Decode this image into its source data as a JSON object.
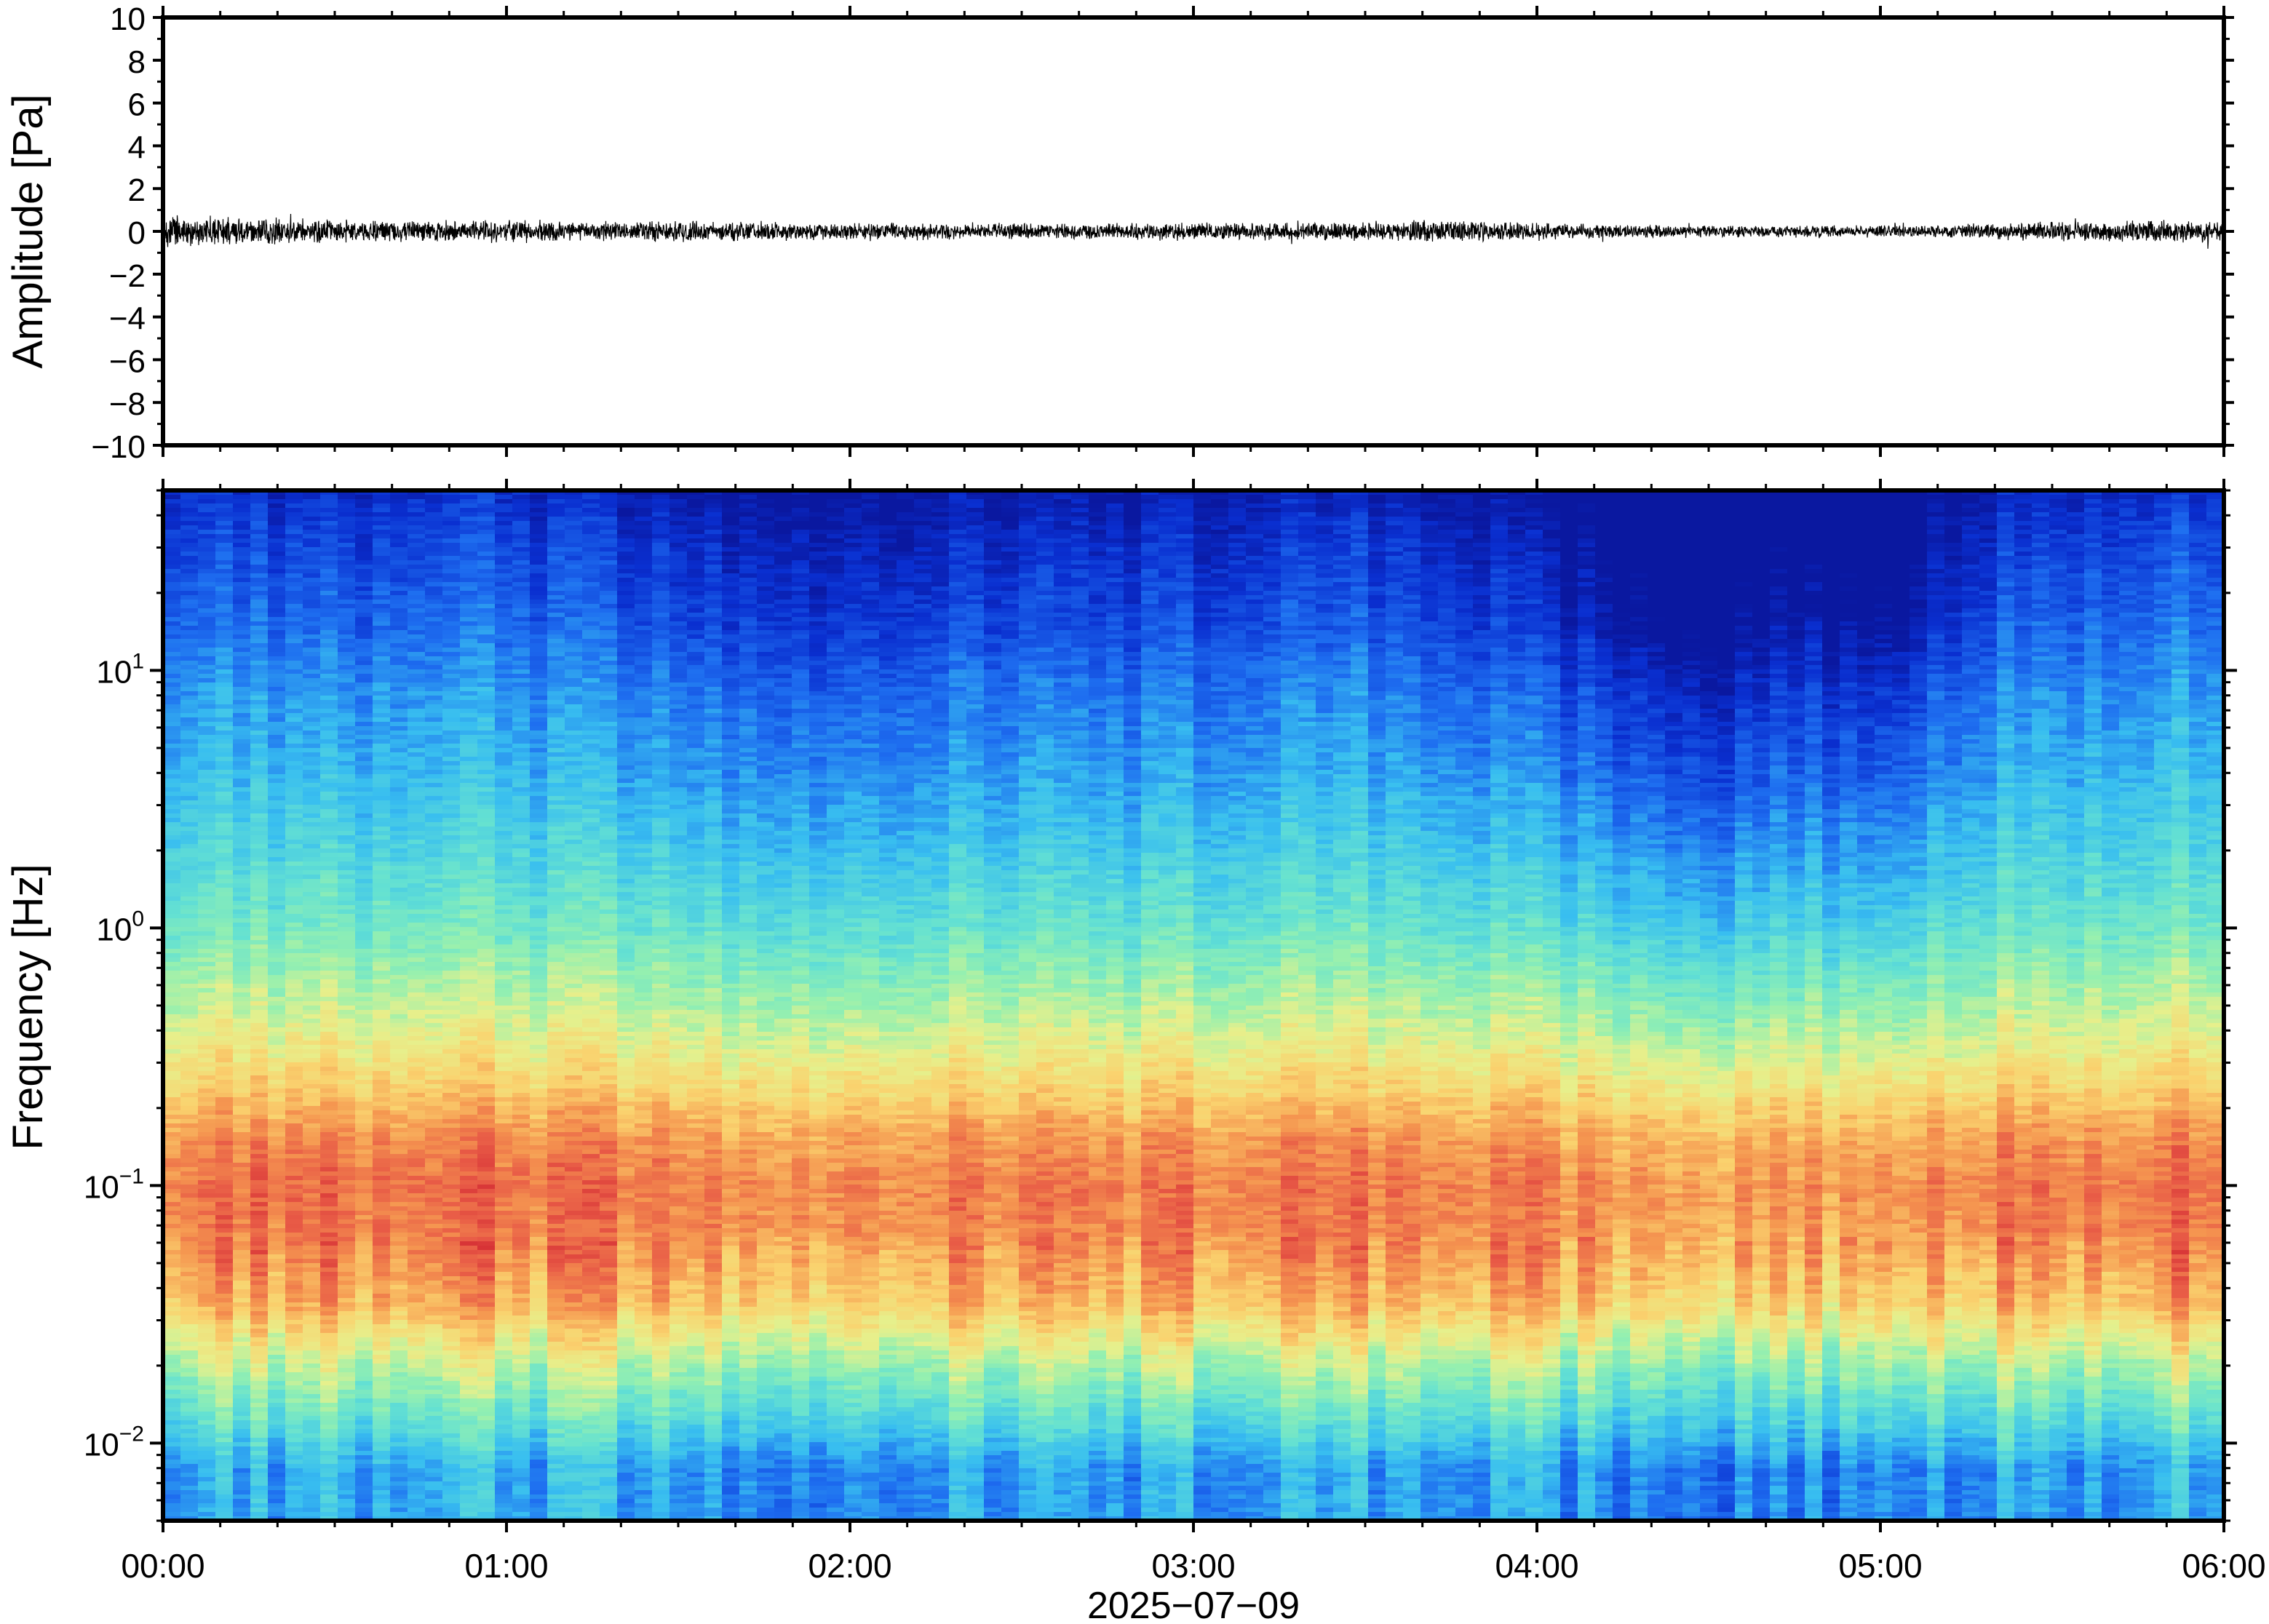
{
  "chart_data": [
    {
      "type": "line",
      "panel": "waveform",
      "ylabel": "Amplitude [Pa]",
      "ylim": [
        -10,
        10
      ],
      "yticks": [
        -10,
        -8,
        -6,
        -4,
        -2,
        0,
        2,
        4,
        6,
        8,
        10
      ],
      "ytick_labels": [
        "−10",
        "−8",
        "−6",
        "−4",
        "−2",
        "0",
        "2",
        "4",
        "6",
        "8",
        "10"
      ],
      "xlim": [
        "2025-07-09T00:00",
        "2025-07-09T06:00"
      ],
      "series": [
        {
          "x_hours": [
            0.0,
            0.25,
            0.5,
            0.75,
            1.0,
            1.25,
            1.5,
            1.75,
            2.0,
            2.25,
            2.5,
            2.75,
            3.0,
            3.25,
            3.5,
            3.75,
            4.0,
            4.25,
            4.5,
            4.75,
            5.0,
            5.25,
            5.5,
            5.75,
            6.0
          ],
          "envelope_pa": [
            0.9,
            0.7,
            0.6,
            0.55,
            0.6,
            0.5,
            0.55,
            0.5,
            0.45,
            0.45,
            0.4,
            0.45,
            0.45,
            0.45,
            0.5,
            0.55,
            0.45,
            0.35,
            0.3,
            0.3,
            0.3,
            0.35,
            0.5,
            0.55,
            0.6
          ],
          "mean_pa": 0
        }
      ],
      "grid": false
    },
    {
      "type": "heatmap",
      "panel": "spectrogram",
      "ylabel": "Frequency [Hz]",
      "yscale": "log",
      "ylim": [
        0.005,
        50
      ],
      "yticks": [
        0.01,
        0.1,
        1,
        10
      ],
      "ytick_labels": [
        {
          "base": "10",
          "exp": "−2"
        },
        {
          "base": "10",
          "exp": "−1"
        },
        {
          "base": "10",
          "exp": "0"
        },
        {
          "base": "10",
          "exp": "1"
        }
      ],
      "xlim": [
        "2025-07-09T00:00",
        "2025-07-09T06:00"
      ],
      "xticks": [
        "00:00",
        "01:00",
        "02:00",
        "03:00",
        "04:00",
        "05:00",
        "06:00"
      ],
      "xlabel": "2025−07−09",
      "colormap": "spectral-jet (blue low power → red high power)",
      "colors": {
        "low": "#0a2fd0",
        "mid_low": "#38c8f0",
        "mid": "#88f0b8",
        "mid_high": "#f5e880",
        "high": "#e84840"
      },
      "power_profile_by_frequency": {
        "freq_hz": [
          0.005,
          0.008,
          0.012,
          0.02,
          0.035,
          0.06,
          0.1,
          0.15,
          0.25,
          0.4,
          0.7,
          1,
          2,
          4,
          8,
          15,
          30,
          50
        ],
        "relative_power": [
          0.28,
          0.28,
          0.42,
          0.58,
          0.78,
          0.86,
          0.88,
          0.84,
          0.72,
          0.62,
          0.52,
          0.45,
          0.36,
          0.28,
          0.22,
          0.14,
          0.08,
          0.02
        ]
      },
      "time_modulation": {
        "x_hours": [
          0.0,
          0.5,
          1.0,
          1.5,
          2.0,
          2.5,
          3.0,
          3.5,
          4.0,
          4.3,
          4.5,
          4.75,
          5.0,
          5.25,
          5.5,
          6.0
        ],
        "relative_offset": [
          0.05,
          0.03,
          0.04,
          0.0,
          -0.02,
          0.0,
          0.0,
          0.02,
          -0.04,
          -0.1,
          -0.14,
          -0.08,
          -0.12,
          0.0,
          0.04,
          0.05
        ]
      }
    }
  ]
}
